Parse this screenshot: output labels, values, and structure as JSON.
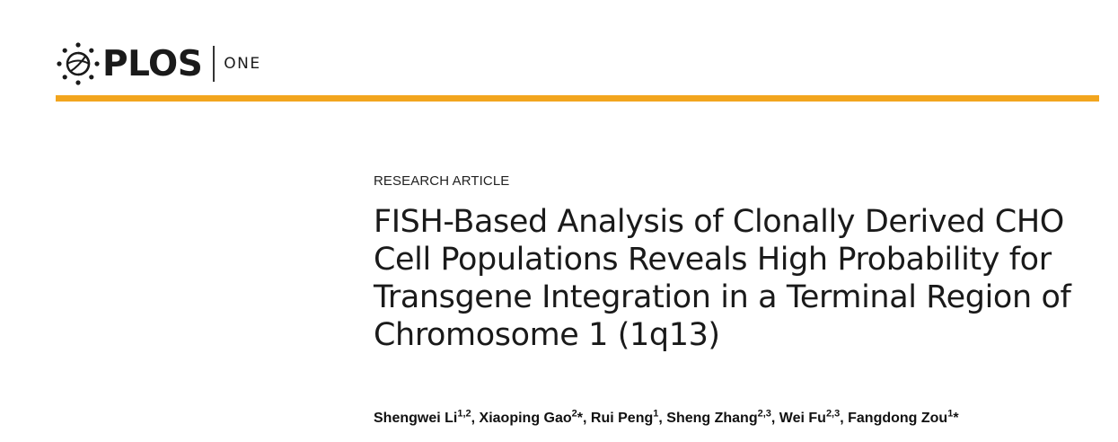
{
  "header": {
    "logo_text": "PLOS",
    "journal": "ONE",
    "accent_color": "#f2a51e",
    "logo_icon": "plos-open-access-icon"
  },
  "article": {
    "type": "RESEARCH ARTICLE",
    "title": "FISH-Based Analysis of Clonally Derived CHO Cell Populations Reveals High Probability for Transgene Integration in a Terminal Region of Chromosome 1 (1q13)",
    "authors": [
      {
        "name": "Shengwei Li",
        "sup": "1,2",
        "sep": ", "
      },
      {
        "name": "Xiaoping Gao",
        "sup": "2",
        "mark": "*",
        "sep": ", "
      },
      {
        "name": "Rui Peng",
        "sup": "1",
        "sep": ", "
      },
      {
        "name": "Sheng Zhang",
        "sup": "2,3",
        "sep": ", "
      },
      {
        "name": "Wei Fu",
        "sup": "2,3",
        "sep": ", "
      },
      {
        "name": "Fangdong Zou",
        "sup": "1",
        "mark": "*",
        "sep": ""
      }
    ]
  }
}
